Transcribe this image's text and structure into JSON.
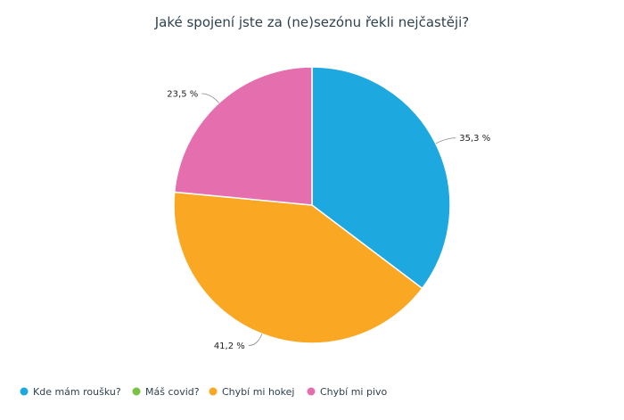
{
  "chart_data": {
    "type": "pie",
    "title": "Jaké spojení jste za (ne)sezónu řekli nejčastěji?",
    "slices": [
      {
        "name": "Kde mám roušku?",
        "value": 35.3,
        "label": "35,3 %",
        "color": "#1ea8e0"
      },
      {
        "name": "Máš covid?",
        "value": 0,
        "label": "",
        "color": "#7cc242"
      },
      {
        "name": "Chybí mi hokej",
        "value": 41.2,
        "label": "41,2 %",
        "color": "#faa823"
      },
      {
        "name": "Chybí mi pivo",
        "value": 23.5,
        "label": "23,5 %",
        "color": "#e56fae"
      }
    ],
    "legend_position": "bottom-left"
  }
}
